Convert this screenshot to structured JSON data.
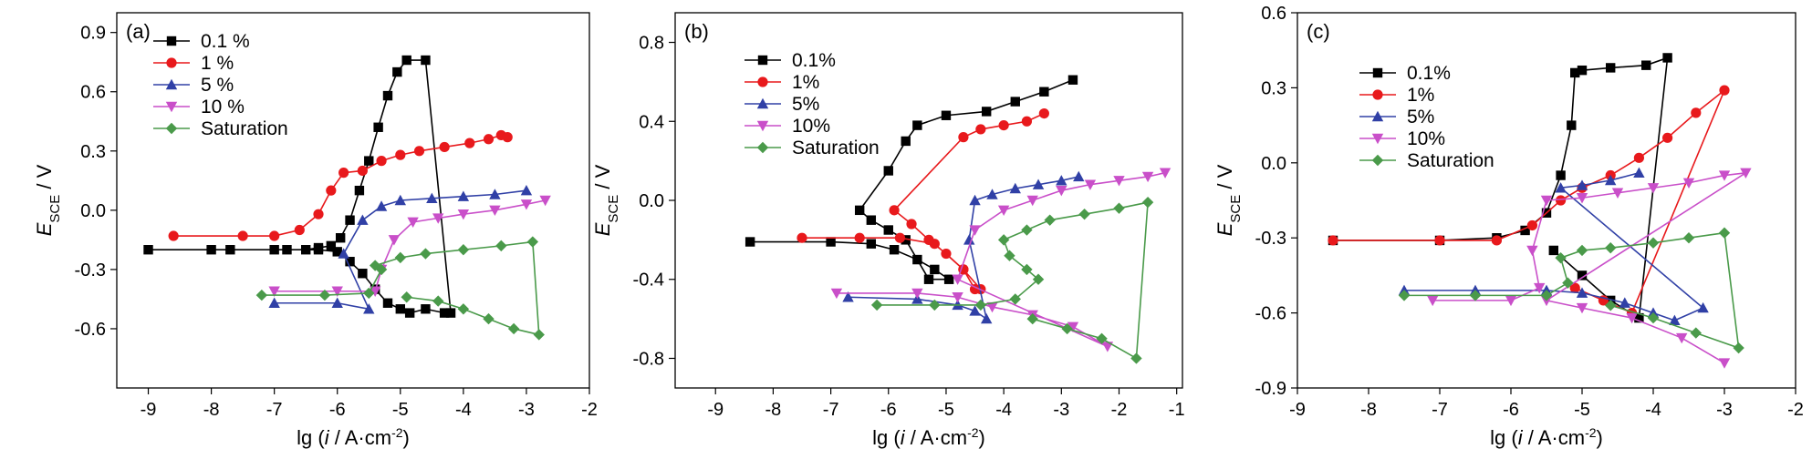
{
  "chart_data": [
    {
      "type": "line",
      "panel_label": "(a)",
      "xlabel": "lg (i / A·cm⁻²)",
      "ylabel": "E_SCE / V",
      "xlim": [
        -9.5,
        -2
      ],
      "ylim": [
        -0.9,
        1.0
      ],
      "xticks": [
        -9,
        -8,
        -7,
        -6,
        -5,
        -4,
        -3,
        -2
      ],
      "yticks": [
        -0.6,
        -0.3,
        0.0,
        0.3,
        0.6,
        0.9
      ],
      "ytick_labels": [
        "-0.6",
        "-0.3",
        "0.0",
        "0.3",
        "0.6",
        "0.9"
      ],
      "legend_position": "top-left",
      "series": [
        {
          "name": "0.1 %",
          "color": "#000000",
          "marker": "square",
          "x": [
            -9.0,
            -7.7,
            -6.8,
            -6.3,
            -6.0,
            -5.8,
            -5.6,
            -5.4,
            -5.2,
            -5.0,
            -4.85,
            -4.6,
            -4.3,
            -4.2,
            -4.6,
            -4.9,
            -5.05,
            -5.2,
            -5.35,
            -5.5,
            -5.65,
            -5.8,
            -5.95,
            -6.1,
            -6.3,
            -6.5,
            -7.0,
            -8.0
          ],
          "y": [
            -0.2,
            -0.2,
            -0.2,
            -0.2,
            -0.21,
            -0.26,
            -0.32,
            -0.4,
            -0.47,
            -0.5,
            -0.52,
            -0.5,
            -0.52,
            -0.52,
            0.76,
            0.76,
            0.7,
            0.58,
            0.42,
            0.25,
            0.1,
            -0.05,
            -0.14,
            -0.18,
            -0.19,
            -0.2,
            -0.2,
            -0.2
          ]
        },
        {
          "name": "1 %",
          "color": "#e8191c",
          "marker": "circle",
          "x": [
            -8.6,
            -7.5,
            -7.0,
            -6.6,
            -6.3,
            -6.1,
            -5.9,
            -5.6,
            -5.3,
            -5.0,
            -4.7,
            -4.3,
            -3.9,
            -3.6,
            -3.4,
            -3.3
          ],
          "y": [
            -0.13,
            -0.13,
            -0.13,
            -0.1,
            -0.02,
            0.1,
            0.19,
            0.2,
            0.25,
            0.28,
            0.3,
            0.32,
            0.34,
            0.36,
            0.38,
            0.37
          ]
        },
        {
          "name": "5 %",
          "color": "#3040a6",
          "marker": "triangle",
          "x": [
            -7.0,
            -6.0,
            -5.5,
            -5.9,
            -5.6,
            -5.3,
            -5.0,
            -4.5,
            -4.0,
            -3.5,
            -3.0
          ],
          "y": [
            -0.47,
            -0.47,
            -0.5,
            -0.22,
            -0.05,
            0.02,
            0.05,
            0.06,
            0.07,
            0.08,
            0.1
          ]
        },
        {
          "name": "10 %",
          "color": "#c94fc9",
          "marker": "triangle-down",
          "x": [
            -7.0,
            -6.0,
            -5.4,
            -5.3,
            -5.1,
            -4.8,
            -4.4,
            -4.0,
            -3.5,
            -3.0,
            -2.7
          ],
          "y": [
            -0.41,
            -0.41,
            -0.41,
            -0.3,
            -0.15,
            -0.06,
            -0.04,
            -0.02,
            0.0,
            0.03,
            0.05
          ]
        },
        {
          "name": "Saturation",
          "color": "#4a9a4a",
          "marker": "diamond",
          "x": [
            -7.2,
            -6.2,
            -5.5,
            -5.3,
            -5.4,
            -5.0,
            -4.6,
            -4.0,
            -3.4,
            -2.9,
            -2.8,
            -3.2,
            -3.6,
            -4.0,
            -4.4,
            -4.9
          ],
          "y": [
            -0.43,
            -0.43,
            -0.42,
            -0.3,
            -0.28,
            -0.24,
            -0.22,
            -0.2,
            -0.18,
            -0.16,
            -0.63,
            -0.6,
            -0.55,
            -0.5,
            -0.46,
            -0.44
          ]
        }
      ]
    },
    {
      "type": "line",
      "panel_label": "(b)",
      "xlabel": "lg (i / A·cm⁻²)",
      "ylabel": "E_SCE / V",
      "xlim": [
        -9.7,
        -0.9
      ],
      "ylim": [
        -0.95,
        0.95
      ],
      "xticks": [
        -9,
        -8,
        -7,
        -6,
        -5,
        -4,
        -3,
        -2,
        -1
      ],
      "yticks": [
        -0.8,
        -0.4,
        0.0,
        0.4,
        0.8
      ],
      "ytick_labels": [
        "-0.8",
        "-0.4",
        "0.0",
        "0.4",
        "0.8"
      ],
      "legend_position": "top-left",
      "series": [
        {
          "name": "0.1%",
          "color": "#000000",
          "marker": "square",
          "x": [
            -8.4,
            -7.0,
            -6.3,
            -5.9,
            -5.5,
            -5.2,
            -4.95,
            -5.3,
            -5.7,
            -6.0,
            -6.3,
            -6.5,
            -6.0,
            -5.7,
            -5.5,
            -5.0,
            -4.3,
            -3.8,
            -3.3,
            -2.8
          ],
          "y": [
            -0.21,
            -0.21,
            -0.22,
            -0.25,
            -0.3,
            -0.35,
            -0.4,
            -0.4,
            -0.2,
            -0.15,
            -0.1,
            -0.05,
            0.15,
            0.3,
            0.38,
            0.43,
            0.45,
            0.5,
            0.55,
            0.61
          ]
        },
        {
          "name": "1%",
          "color": "#e8191c",
          "marker": "circle",
          "x": [
            -7.5,
            -6.5,
            -5.8,
            -5.2,
            -4.7,
            -4.4,
            -4.5,
            -4.7,
            -5.0,
            -5.3,
            -5.6,
            -5.9,
            -4.7,
            -4.4,
            -4.0,
            -3.6,
            -3.3
          ],
          "y": [
            -0.19,
            -0.19,
            -0.19,
            -0.22,
            -0.35,
            -0.45,
            -0.45,
            -0.35,
            -0.27,
            -0.2,
            -0.12,
            -0.05,
            0.32,
            0.36,
            0.38,
            0.4,
            0.44
          ]
        },
        {
          "name": "5%",
          "color": "#3040a6",
          "marker": "triangle",
          "x": [
            -6.7,
            -5.5,
            -4.8,
            -4.5,
            -4.3,
            -4.6,
            -4.5,
            -4.2,
            -3.8,
            -3.4,
            -3.0,
            -2.7
          ],
          "y": [
            -0.49,
            -0.5,
            -0.53,
            -0.56,
            -0.6,
            -0.2,
            0.0,
            0.03,
            0.06,
            0.08,
            0.1,
            0.12
          ]
        },
        {
          "name": "10%",
          "color": "#c94fc9",
          "marker": "triangle-down",
          "x": [
            -6.9,
            -5.5,
            -4.8,
            -4.2,
            -3.5,
            -2.8,
            -2.2,
            -4.8,
            -4.5,
            -4.0,
            -3.5,
            -3.0,
            -2.5,
            -2.0,
            -1.5,
            -1.2
          ],
          "y": [
            -0.47,
            -0.47,
            -0.49,
            -0.54,
            -0.58,
            -0.64,
            -0.74,
            -0.4,
            -0.15,
            -0.05,
            0.0,
            0.05,
            0.08,
            0.1,
            0.12,
            0.14
          ]
        },
        {
          "name": "Saturation",
          "color": "#4a9a4a",
          "marker": "diamond",
          "x": [
            -6.2,
            -5.2,
            -4.4,
            -3.8,
            -3.4,
            -3.6,
            -3.9,
            -4.0,
            -3.6,
            -3.2,
            -2.6,
            -2.0,
            -1.5,
            -1.7,
            -2.3,
            -2.9,
            -3.5
          ],
          "y": [
            -0.53,
            -0.53,
            -0.53,
            -0.5,
            -0.4,
            -0.35,
            -0.28,
            -0.2,
            -0.15,
            -0.1,
            -0.07,
            -0.04,
            -0.01,
            -0.8,
            -0.7,
            -0.65,
            -0.6
          ]
        }
      ]
    },
    {
      "type": "line",
      "panel_label": "(c)",
      "xlabel": "lg (i / A·cm⁻²)",
      "ylabel": "E_SCE / V",
      "xlim": [
        -9,
        -2
      ],
      "ylim": [
        -0.9,
        0.6
      ],
      "xticks": [
        -9,
        -8,
        -7,
        -6,
        -5,
        -4,
        -3,
        -2
      ],
      "yticks": [
        -0.9,
        -0.6,
        -0.3,
        0.0,
        0.3,
        0.6
      ],
      "ytick_labels": [
        "-0.9",
        "-0.6",
        "-0.3",
        "0.0",
        "0.3",
        "0.6"
      ],
      "legend_position": "top-left",
      "series": [
        {
          "name": "0.1%",
          "color": "#000000",
          "marker": "square",
          "x": [
            -8.5,
            -7.0,
            -6.2,
            -5.8,
            -5.5,
            -5.3,
            -5.15,
            -5.1,
            -5.0,
            -4.6,
            -4.1,
            -3.8,
            -4.2,
            -4.6,
            -5.0,
            -5.4
          ],
          "y": [
            -0.31,
            -0.31,
            -0.3,
            -0.27,
            -0.2,
            -0.05,
            0.15,
            0.36,
            0.37,
            0.38,
            0.39,
            0.42,
            -0.62,
            -0.55,
            -0.45,
            -0.35
          ]
        },
        {
          "name": "1%",
          "color": "#e8191c",
          "marker": "circle",
          "x": [
            -8.5,
            -7.0,
            -6.2,
            -5.7,
            -5.3,
            -5.0,
            -4.6,
            -4.2,
            -3.8,
            -3.4,
            -3.0,
            -4.3,
            -4.7,
            -5.1
          ],
          "y": [
            -0.31,
            -0.31,
            -0.31,
            -0.25,
            -0.15,
            -0.1,
            -0.05,
            0.02,
            0.1,
            0.2,
            0.29,
            -0.6,
            -0.55,
            -0.5
          ]
        },
        {
          "name": "5%",
          "color": "#3040a6",
          "marker": "triangle",
          "x": [
            -7.5,
            -6.5,
            -5.5,
            -5.0,
            -4.4,
            -4.0,
            -3.7,
            -3.3,
            -5.3,
            -5.0,
            -4.6,
            -4.2
          ],
          "y": [
            -0.51,
            -0.51,
            -0.51,
            -0.52,
            -0.56,
            -0.6,
            -0.63,
            -0.58,
            -0.1,
            -0.09,
            -0.07,
            -0.04
          ]
        },
        {
          "name": "10%",
          "color": "#c94fc9",
          "marker": "triangle-down",
          "x": [
            -7.1,
            -6.0,
            -5.6,
            -5.7,
            -5.5,
            -5.0,
            -4.5,
            -4.0,
            -3.5,
            -3.0,
            -2.7,
            -5.5,
            -5.0,
            -4.3,
            -3.6,
            -3.0
          ],
          "y": [
            -0.55,
            -0.55,
            -0.5,
            -0.35,
            -0.15,
            -0.14,
            -0.12,
            -0.1,
            -0.08,
            -0.05,
            -0.04,
            -0.55,
            -0.58,
            -0.62,
            -0.7,
            -0.8
          ]
        },
        {
          "name": "Saturation",
          "color": "#4a9a4a",
          "marker": "diamond",
          "x": [
            -7.5,
            -6.5,
            -5.5,
            -5.2,
            -5.3,
            -5.0,
            -4.6,
            -4.0,
            -3.5,
            -3.0,
            -2.8,
            -3.4,
            -4.0,
            -4.6
          ],
          "y": [
            -0.53,
            -0.53,
            -0.53,
            -0.48,
            -0.38,
            -0.35,
            -0.34,
            -0.32,
            -0.3,
            -0.28,
            -0.74,
            -0.68,
            -0.62,
            -0.57
          ]
        }
      ]
    }
  ]
}
